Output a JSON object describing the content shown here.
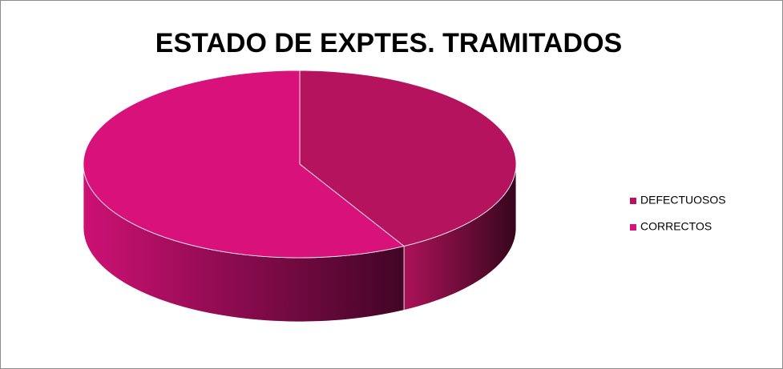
{
  "chart_data": {
    "type": "pie",
    "title": "ESTADO DE EXPTES. TRAMITADOS",
    "categories": [
      "DEFECTUOSOS",
      "CORRECTOS"
    ],
    "values": [
      42,
      58
    ],
    "colors": [
      "#b5135e",
      "#d8127a"
    ],
    "legend": "right"
  }
}
